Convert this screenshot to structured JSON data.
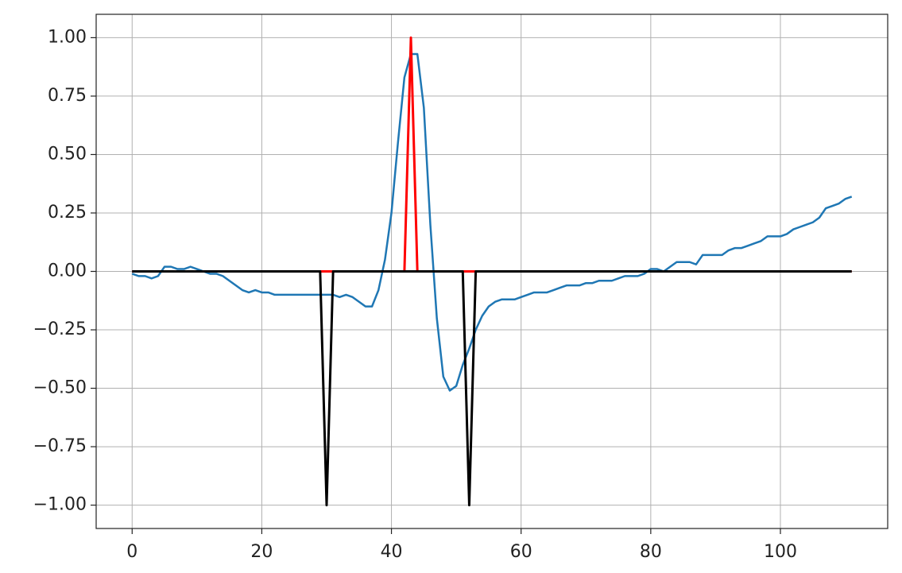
{
  "chart_data": {
    "type": "line",
    "x": [
      0,
      1,
      2,
      3,
      4,
      5,
      6,
      7,
      8,
      9,
      10,
      11,
      12,
      13,
      14,
      15,
      16,
      17,
      18,
      19,
      20,
      21,
      22,
      23,
      24,
      25,
      26,
      27,
      28,
      29,
      30,
      31,
      32,
      33,
      34,
      35,
      36,
      37,
      38,
      39,
      40,
      41,
      42,
      43,
      44,
      45,
      46,
      47,
      48,
      49,
      50,
      51,
      52,
      53,
      54,
      55,
      56,
      57,
      58,
      59,
      60,
      61,
      62,
      63,
      64,
      65,
      66,
      67,
      68,
      69,
      70,
      71,
      72,
      73,
      74,
      75,
      76,
      77,
      78,
      79,
      80,
      81,
      82,
      83,
      84,
      85,
      86,
      87,
      88,
      89,
      90,
      91,
      92,
      93,
      94,
      95,
      96,
      97,
      98,
      99,
      100,
      101,
      102,
      103,
      104,
      105,
      106,
      107,
      108,
      109,
      110,
      111
    ],
    "series": [
      {
        "color": "#1f77b4",
        "values": [
          -0.01,
          -0.02,
          -0.02,
          -0.03,
          -0.02,
          0.02,
          0.02,
          0.01,
          0.01,
          0.02,
          0.01,
          0.0,
          -0.01,
          -0.01,
          -0.02,
          -0.04,
          -0.06,
          -0.08,
          -0.09,
          -0.08,
          -0.09,
          -0.09,
          -0.1,
          -0.1,
          -0.1,
          -0.1,
          -0.1,
          -0.1,
          -0.1,
          -0.1,
          -0.1,
          -0.1,
          -0.11,
          -0.1,
          -0.11,
          -0.13,
          -0.15,
          -0.15,
          -0.08,
          0.05,
          0.25,
          0.55,
          0.83,
          0.93,
          0.93,
          0.7,
          0.2,
          -0.2,
          -0.45,
          -0.51,
          -0.49,
          -0.4,
          -0.33,
          -0.25,
          -0.19,
          -0.15,
          -0.13,
          -0.12,
          -0.12,
          -0.12,
          -0.11,
          -0.1,
          -0.09,
          -0.09,
          -0.09,
          -0.08,
          -0.07,
          -0.06,
          -0.06,
          -0.06,
          -0.05,
          -0.05,
          -0.04,
          -0.04,
          -0.04,
          -0.03,
          -0.02,
          -0.02,
          -0.02,
          -0.01,
          0.01,
          0.01,
          0.0,
          0.02,
          0.04,
          0.04,
          0.04,
          0.03,
          0.07,
          0.07,
          0.07,
          0.07,
          0.09,
          0.1,
          0.1,
          0.11,
          0.12,
          0.13,
          0.15,
          0.15,
          0.15,
          0.16,
          0.18,
          0.19,
          0.2,
          0.21,
          0.23,
          0.27,
          0.28,
          0.29,
          0.31,
          0.32
        ]
      },
      {
        "color": "#ff0000",
        "values": [
          0,
          0,
          0,
          0,
          0,
          0,
          0,
          0,
          0,
          0,
          0,
          0,
          0,
          0,
          0,
          0,
          0,
          0,
          0,
          0,
          0,
          0,
          0,
          0,
          0,
          0,
          0,
          0,
          0,
          0,
          0,
          0,
          0,
          0,
          0,
          0,
          0,
          0,
          0,
          0,
          0,
          0,
          0,
          1,
          0,
          0,
          0,
          0,
          0,
          0,
          0,
          0,
          0,
          0,
          0,
          0,
          0,
          0,
          0,
          0,
          0,
          0,
          0,
          0,
          0,
          0,
          0,
          0,
          0,
          0,
          0,
          0,
          0,
          0,
          0,
          0,
          0,
          0,
          0,
          0,
          0,
          0,
          0,
          0,
          0,
          0,
          0,
          0,
          0,
          0,
          0,
          0,
          0,
          0,
          0,
          0,
          0,
          0,
          0,
          0,
          0,
          0,
          0,
          0,
          0,
          0,
          0,
          0,
          0,
          0,
          0,
          0
        ]
      },
      {
        "color": "#000000",
        "values": [
          0,
          0,
          0,
          0,
          0,
          0,
          0,
          0,
          0,
          0,
          0,
          0,
          0,
          0,
          0,
          0,
          0,
          0,
          0,
          0,
          0,
          0,
          0,
          0,
          0,
          0,
          0,
          0,
          0,
          0,
          -1,
          0,
          0,
          0,
          0,
          0,
          0,
          0,
          0,
          0,
          0,
          0,
          0,
          0,
          0,
          0,
          0,
          0,
          0,
          0,
          0,
          0,
          -1,
          0,
          0,
          0,
          0,
          0,
          0,
          0,
          0,
          0,
          0,
          0,
          0,
          0,
          0,
          0,
          0,
          0,
          0,
          0,
          0,
          0,
          0,
          0,
          0,
          0,
          0,
          0,
          0,
          0,
          0,
          0,
          0,
          0,
          0,
          0,
          0,
          0,
          0,
          0,
          0,
          0,
          0,
          0,
          0,
          0,
          0,
          0,
          0,
          0,
          0,
          0,
          0,
          0,
          0,
          0,
          0,
          0,
          0,
          0
        ]
      }
    ],
    "xlim": [
      -5.55,
      116.55
    ],
    "xticks": [
      0,
      20,
      40,
      60,
      80,
      100
    ],
    "ylim": [
      -1.1,
      1.1
    ],
    "yticks": [
      {
        "value": -1,
        "label": "−1.00"
      },
      {
        "value": -0.75,
        "label": "−0.75"
      },
      {
        "value": -0.5,
        "label": "−0.50"
      },
      {
        "value": -0.25,
        "label": "−0.25"
      },
      {
        "value": 0,
        "label": "0.00"
      },
      {
        "value": 0.25,
        "label": "0.25"
      },
      {
        "value": 0.5,
        "label": "0.50"
      },
      {
        "value": 0.75,
        "label": "0.75"
      },
      {
        "value": 1,
        "label": "1.00"
      }
    ],
    "grid": true
  }
}
